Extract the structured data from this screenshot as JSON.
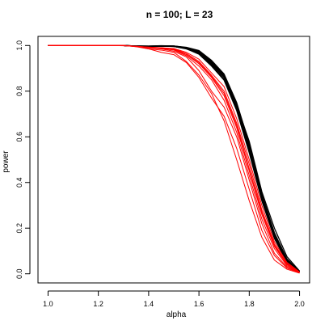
{
  "chart_data": {
    "type": "line",
    "title": "n = 100; L = 23",
    "xlabel": "alpha",
    "ylabel": "power",
    "xlim": [
      1.0,
      2.0
    ],
    "ylim": [
      0.0,
      1.0
    ],
    "xticks": [
      "1.0",
      "1.2",
      "1.4",
      "1.6",
      "1.8",
      "2.0"
    ],
    "yticks": [
      "0.0",
      "0.2",
      "0.4",
      "0.6",
      "0.8",
      "1.0"
    ],
    "grid": false,
    "legend": "none",
    "colors": {
      "black": "#000000",
      "red": "#ff0000"
    },
    "x": [
      1.0,
      1.05,
      1.1,
      1.15,
      1.2,
      1.25,
      1.3,
      1.35,
      1.4,
      1.45,
      1.5,
      1.55,
      1.6,
      1.65,
      1.7,
      1.75,
      1.8,
      1.85,
      1.9,
      1.95,
      2.0
    ],
    "series": [
      {
        "color": "black",
        "values": [
          1.0,
          1.0,
          1.0,
          1.0,
          1.0,
          1.0,
          1.0,
          0.997,
          0.996,
          0.998,
          0.997,
          0.99,
          0.975,
          0.93,
          0.87,
          0.74,
          0.56,
          0.34,
          0.17,
          0.06,
          0.01
        ]
      },
      {
        "color": "black",
        "values": [
          1.0,
          1.0,
          1.0,
          1.0,
          1.0,
          1.0,
          1.0,
          0.998,
          0.998,
          0.999,
          0.998,
          0.992,
          0.978,
          0.935,
          0.875,
          0.75,
          0.57,
          0.35,
          0.18,
          0.065,
          0.01
        ]
      },
      {
        "color": "black",
        "values": [
          1.0,
          1.0,
          1.0,
          1.0,
          1.0,
          1.0,
          1.0,
          0.997,
          0.995,
          0.997,
          0.996,
          0.988,
          0.972,
          0.925,
          0.865,
          0.735,
          0.55,
          0.335,
          0.165,
          0.058,
          0.01
        ]
      },
      {
        "color": "black",
        "values": [
          1.0,
          1.0,
          1.0,
          1.0,
          1.0,
          1.0,
          1.0,
          0.998,
          0.997,
          0.998,
          0.997,
          0.989,
          0.97,
          0.92,
          0.86,
          0.725,
          0.545,
          0.33,
          0.16,
          0.055,
          0.008
        ]
      },
      {
        "color": "black",
        "values": [
          1.0,
          1.0,
          1.0,
          1.0,
          1.0,
          1.0,
          1.0,
          0.998,
          0.997,
          0.998,
          0.998,
          0.991,
          0.975,
          0.93,
          0.868,
          0.742,
          0.56,
          0.34,
          0.168,
          0.06,
          0.01
        ]
      },
      {
        "color": "black",
        "values": [
          1.0,
          1.0,
          1.0,
          1.0,
          1.0,
          1.0,
          1.0,
          0.997,
          0.996,
          0.997,
          0.996,
          0.985,
          0.965,
          0.915,
          0.852,
          0.72,
          0.535,
          0.325,
          0.158,
          0.05,
          0.008
        ]
      },
      {
        "color": "black",
        "values": [
          1.0,
          1.0,
          1.0,
          1.0,
          1.0,
          1.0,
          1.0,
          0.997,
          0.996,
          0.998,
          0.997,
          0.99,
          0.97,
          0.925,
          0.87,
          0.74,
          0.58,
          0.36,
          0.2,
          0.075,
          0.012
        ]
      },
      {
        "color": "black",
        "values": [
          1.0,
          1.0,
          1.0,
          1.0,
          1.0,
          1.0,
          1.0,
          0.998,
          0.996,
          0.997,
          0.997,
          0.988,
          0.968,
          0.92,
          0.86,
          0.73,
          0.55,
          0.33,
          0.17,
          0.06,
          0.01
        ]
      },
      {
        "color": "black",
        "values": [
          1.0,
          1.0,
          1.0,
          1.0,
          1.0,
          1.0,
          1.0,
          0.998,
          0.997,
          0.998,
          0.996,
          0.986,
          0.962,
          0.91,
          0.848,
          0.715,
          0.53,
          0.32,
          0.155,
          0.05,
          0.008
        ]
      },
      {
        "color": "black",
        "values": [
          1.0,
          1.0,
          1.0,
          1.0,
          1.0,
          1.0,
          1.0,
          0.997,
          0.996,
          0.998,
          0.998,
          0.99,
          0.974,
          0.928,
          0.872,
          0.745,
          0.565,
          0.345,
          0.175,
          0.062,
          0.01
        ]
      },
      {
        "color": "red",
        "values": [
          1.0,
          1.0,
          1.0,
          1.0,
          1.0,
          1.0,
          1.0,
          0.996,
          0.99,
          0.99,
          0.985,
          0.96,
          0.92,
          0.86,
          0.78,
          0.64,
          0.45,
          0.26,
          0.12,
          0.04,
          0.006
        ]
      },
      {
        "color": "red",
        "values": [
          1.0,
          1.0,
          1.0,
          1.0,
          1.0,
          1.0,
          0.999,
          0.996,
          0.985,
          0.98,
          0.97,
          0.93,
          0.87,
          0.79,
          0.67,
          0.5,
          0.32,
          0.16,
          0.06,
          0.02,
          0.003
        ]
      },
      {
        "color": "red",
        "values": [
          1.0,
          1.0,
          1.0,
          1.0,
          1.0,
          1.0,
          1.0,
          0.995,
          0.99,
          0.985,
          0.975,
          0.95,
          0.89,
          0.8,
          0.73,
          0.6,
          0.41,
          0.22,
          0.09,
          0.03,
          0.004
        ]
      },
      {
        "color": "red",
        "values": [
          1.0,
          1.0,
          1.0,
          1.0,
          1.0,
          1.0,
          1.0,
          0.996,
          0.993,
          0.99,
          0.987,
          0.97,
          0.94,
          0.88,
          0.82,
          0.68,
          0.5,
          0.3,
          0.14,
          0.05,
          0.008
        ]
      },
      {
        "color": "red",
        "values": [
          1.0,
          1.0,
          1.0,
          1.0,
          1.0,
          1.0,
          1.0,
          0.996,
          0.99,
          0.987,
          0.98,
          0.955,
          0.91,
          0.85,
          0.76,
          0.62,
          0.43,
          0.24,
          0.11,
          0.035,
          0.005
        ]
      },
      {
        "color": "red",
        "values": [
          1.0,
          1.0,
          1.0,
          1.0,
          1.0,
          1.0,
          1.0,
          0.997,
          0.992,
          0.99,
          0.985,
          0.965,
          0.93,
          0.87,
          0.8,
          0.66,
          0.48,
          0.28,
          0.13,
          0.045,
          0.007
        ]
      },
      {
        "color": "red",
        "values": [
          1.0,
          1.0,
          1.0,
          1.0,
          1.0,
          1.0,
          1.0,
          0.995,
          0.985,
          0.97,
          0.96,
          0.925,
          0.86,
          0.77,
          0.69,
          0.55,
          0.37,
          0.19,
          0.08,
          0.025,
          0.004
        ]
      },
      {
        "color": "red",
        "values": [
          1.0,
          1.0,
          1.0,
          1.0,
          1.0,
          1.0,
          1.0,
          0.996,
          0.991,
          0.988,
          0.982,
          0.96,
          0.925,
          0.865,
          0.79,
          0.65,
          0.46,
          0.27,
          0.125,
          0.042,
          0.006
        ]
      }
    ]
  }
}
